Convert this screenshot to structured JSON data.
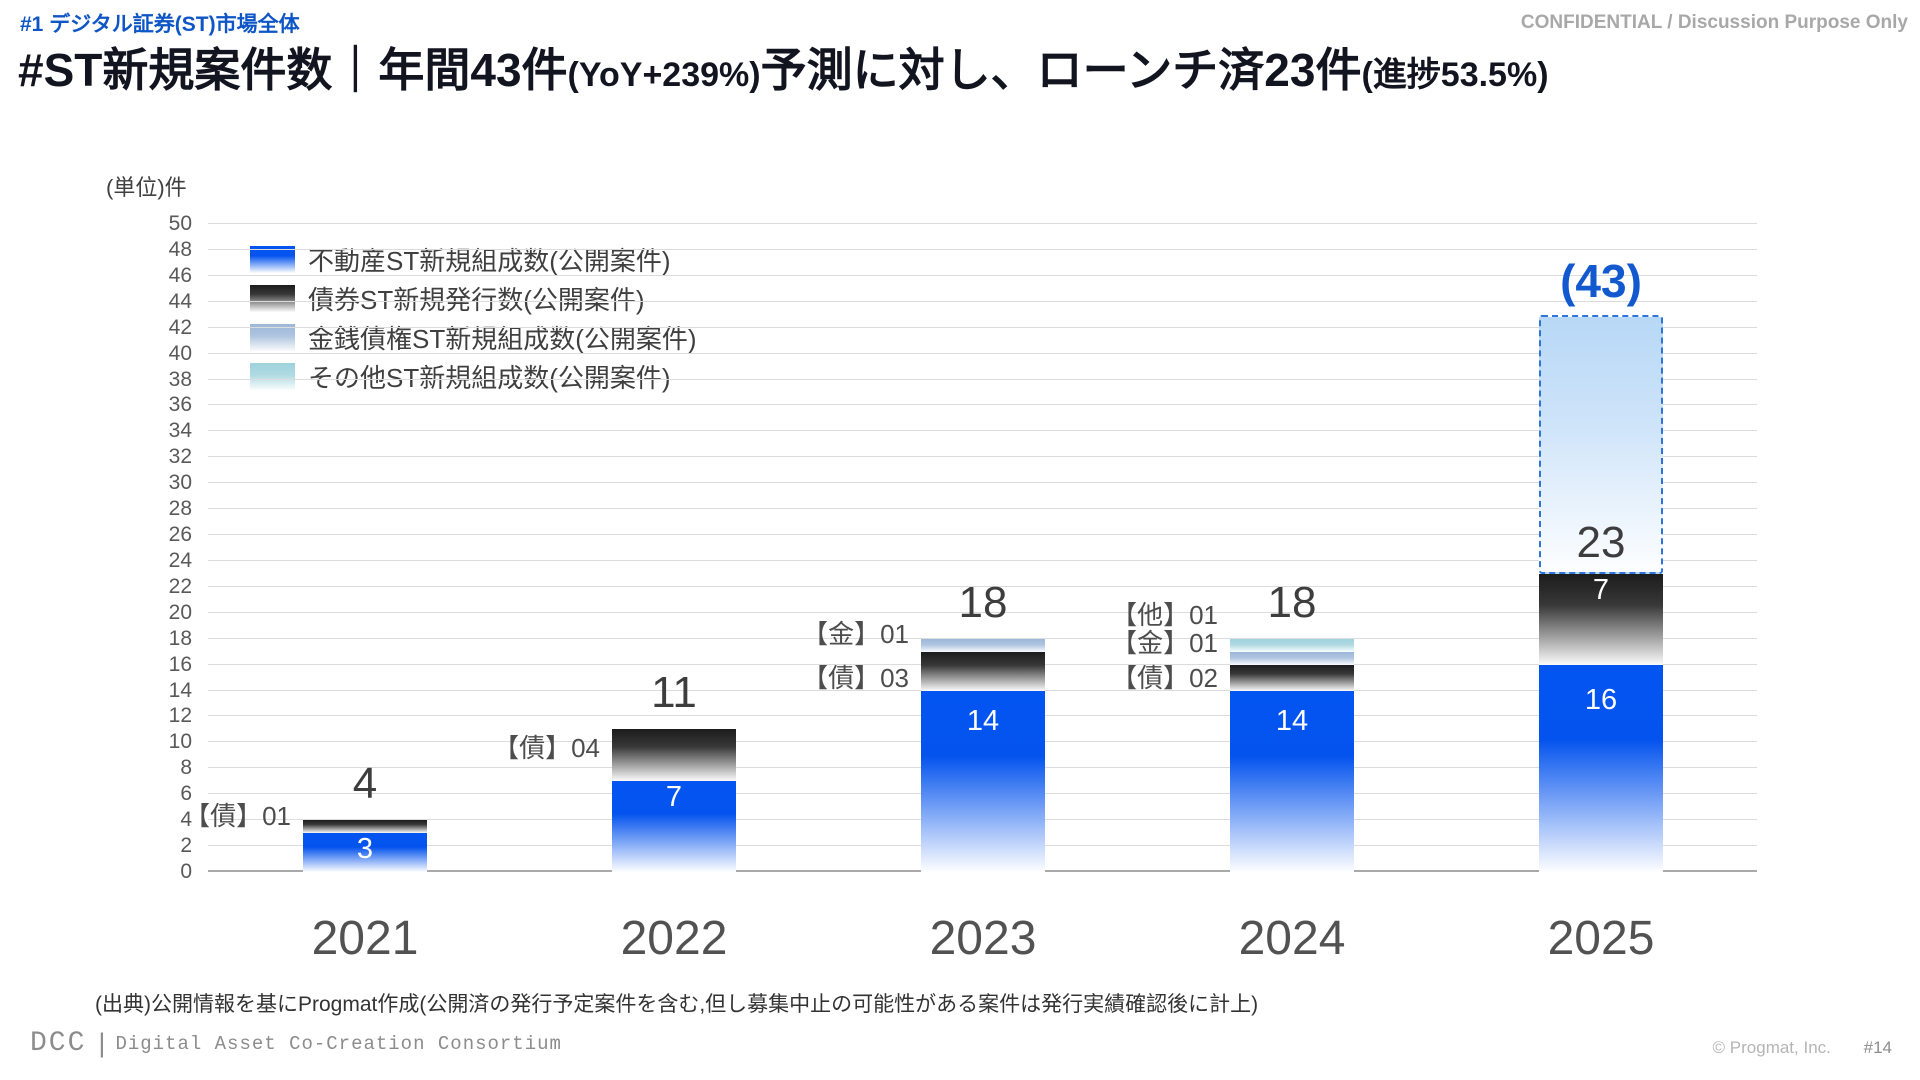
{
  "header": {
    "tag": "#1 デジタル証券(ST)市場全体",
    "confidential": "CONFIDENTIAL / Discussion Purpose Only",
    "title": {
      "part1": "#ST新規案件数｜年間43件",
      "part2": "(YoY+239%)",
      "part3": "予測に対し、ローンチ済23件",
      "part4": "(進捗53.5%)"
    }
  },
  "chart_data": {
    "type": "bar",
    "stacked": true,
    "unit_label": "(単位)件",
    "ylim": [
      0,
      50
    ],
    "ytick_step": 2,
    "grid": true,
    "legend_position": "top-left",
    "categories": [
      "2021",
      "2022",
      "2023",
      "2024",
      "2025"
    ],
    "series": [
      {
        "name": "不動産ST新規組成数(公開案件)",
        "color": "#0355F1",
        "values": [
          3,
          7,
          14,
          14,
          16
        ],
        "bar_labels": [
          "3",
          "7",
          "14",
          "14",
          "16"
        ]
      },
      {
        "name": "債券ST新規発行数(公開案件)",
        "color": "#212121",
        "values": [
          1,
          4,
          3,
          2,
          7
        ],
        "bar_labels": [
          null,
          null,
          null,
          null,
          "7"
        ]
      },
      {
        "name": "金銭債権ST新規組成数(公開案件)",
        "color": "#9DB7D9",
        "values": [
          0,
          0,
          1,
          1,
          0
        ],
        "bar_labels": [
          null,
          null,
          null,
          null,
          null
        ]
      },
      {
        "name": "その他ST新規組成数(公開案件)",
        "color": "#9ED2DD",
        "values": [
          0,
          0,
          0,
          1,
          0
        ],
        "bar_labels": [
          null,
          null,
          null,
          null,
          null
        ]
      }
    ],
    "totals": [
      4,
      11,
      18,
      18,
      23
    ],
    "forecast": {
      "category": "2025",
      "from": 23,
      "to": 43,
      "label": "(43)",
      "launched_label": "23",
      "border_color": "#2F74D9"
    },
    "annotations": [
      {
        "category": "2021",
        "text": "【債】01",
        "level": 4.3
      },
      {
        "category": "2022",
        "text": "【債】04",
        "level": 9.6
      },
      {
        "category": "2023",
        "text": "【金】01",
        "level": 18.4
      },
      {
        "category": "2023",
        "text": "【債】03",
        "level": 15.0
      },
      {
        "category": "2024",
        "text": "【他】01",
        "level": 19.8
      },
      {
        "category": "2024",
        "text": "【金】01",
        "level": 17.7
      },
      {
        "category": "2024",
        "text": "【債】02",
        "level": 15.0
      }
    ]
  },
  "source_note": "(出典)公開情報を基にProgmat作成(公開済の発行予定案件を含む,但し募集中止の可能性がある案件は発行実績確認後に計上)",
  "footer": {
    "logo": "DCC",
    "separator": "|",
    "org_name": "Digital Asset Co-Creation Consortium",
    "copyright": "© Progmat, Inc.",
    "page_number": "#14"
  },
  "colors": {
    "accent_blue": "#0E55C6",
    "forecast_label_blue": "#1259CF",
    "title_text": "#121420",
    "axis_text": "#595959",
    "gridline": "#DCDCDC"
  }
}
